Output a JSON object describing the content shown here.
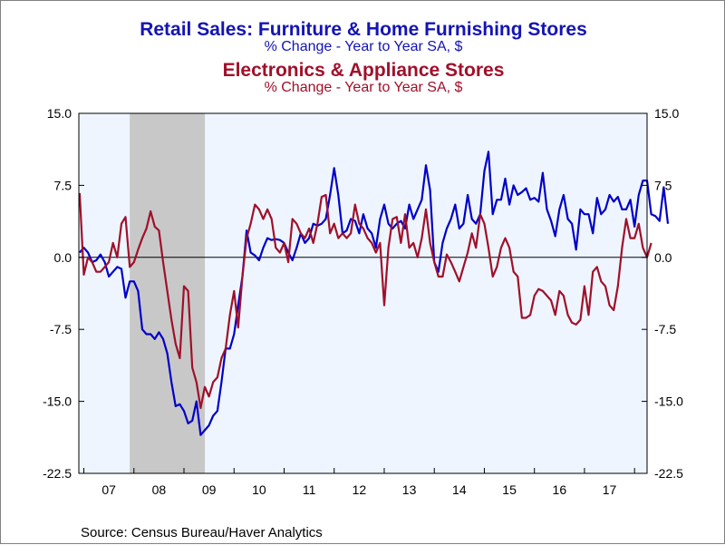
{
  "chart_data": {
    "type": "line",
    "title": {
      "series1_title": "Retail Sales: Furniture & Home Furnishing Stores",
      "series1_subtitle": "% Change - Year to Year    SA, $",
      "series2_title": "Electronics & Appliance Stores",
      "series2_subtitle": "% Change - Year to Year    SA, $"
    },
    "source": "Source:  Census Bureau/Haver Analytics",
    "x_range": [
      2006.9,
      2018.25
    ],
    "ylim": [
      -22.5,
      15.0
    ],
    "yticks": [
      15.0,
      7.5,
      0.0,
      -7.5,
      -15.0,
      -22.5
    ],
    "ytick_labels": [
      "15.0",
      "7.5",
      "0.0",
      "-7.5",
      "-15.0",
      "-22.5"
    ],
    "xtick_labels": [
      {
        "year": 2007,
        "label": "07"
      },
      {
        "year": 2008,
        "label": "08"
      },
      {
        "year": 2009,
        "label": "09"
      },
      {
        "year": 2010,
        "label": "10"
      },
      {
        "year": 2011,
        "label": "11"
      },
      {
        "year": 2012,
        "label": "12"
      },
      {
        "year": 2013,
        "label": "13"
      },
      {
        "year": 2014,
        "label": "14"
      },
      {
        "year": 2015,
        "label": "15"
      },
      {
        "year": 2016,
        "label": "16"
      },
      {
        "year": 2017,
        "label": "17"
      }
    ],
    "recession": [
      2007.917,
      2009.417
    ],
    "zero_line": 0.0,
    "colors": {
      "furniture": "#0000c8",
      "electronics": "#a0102a",
      "plot_bg": "#eef5ff",
      "recession": "#c8c8c8",
      "title_blue": "#1414b4",
      "title_red": "#a0102a"
    },
    "series": [
      {
        "key": "furniture",
        "points": [
          [
            2006.917,
            0.5
          ],
          [
            2007.0,
            1.0
          ],
          [
            2007.083,
            0.5
          ],
          [
            2007.167,
            -0.5
          ],
          [
            2007.25,
            -0.3
          ],
          [
            2007.333,
            0.3
          ],
          [
            2007.417,
            -0.5
          ],
          [
            2007.5,
            -2.0
          ],
          [
            2007.583,
            -1.5
          ],
          [
            2007.667,
            -1.0
          ],
          [
            2007.75,
            -1.2
          ],
          [
            2007.833,
            -4.2
          ],
          [
            2007.917,
            -2.5
          ],
          [
            2008.0,
            -2.5
          ],
          [
            2008.083,
            -3.5
          ],
          [
            2008.167,
            -7.5
          ],
          [
            2008.25,
            -8.0
          ],
          [
            2008.333,
            -8.0
          ],
          [
            2008.417,
            -8.5
          ],
          [
            2008.5,
            -7.8
          ],
          [
            2008.583,
            -8.5
          ],
          [
            2008.667,
            -10.0
          ],
          [
            2008.75,
            -13.0
          ],
          [
            2008.833,
            -15.5
          ],
          [
            2008.917,
            -15.3
          ],
          [
            2009.0,
            -16.0
          ],
          [
            2009.083,
            -17.3
          ],
          [
            2009.167,
            -17.0
          ],
          [
            2009.25,
            -15.0
          ],
          [
            2009.333,
            -18.5
          ],
          [
            2009.417,
            -18.0
          ],
          [
            2009.5,
            -17.5
          ],
          [
            2009.583,
            -16.5
          ],
          [
            2009.667,
            -16.0
          ],
          [
            2009.75,
            -13.0
          ],
          [
            2009.833,
            -9.5
          ],
          [
            2009.917,
            -9.5
          ],
          [
            2010.0,
            -8.0
          ],
          [
            2010.083,
            -5.0
          ],
          [
            2010.167,
            -2.0
          ],
          [
            2010.25,
            2.8
          ],
          [
            2010.333,
            0.5
          ],
          [
            2010.417,
            0.2
          ],
          [
            2010.5,
            -0.3
          ],
          [
            2010.583,
            1.0
          ],
          [
            2010.667,
            2.0
          ],
          [
            2010.75,
            1.8
          ],
          [
            2010.833,
            1.9
          ],
          [
            2010.917,
            1.8
          ],
          [
            2011.0,
            1.5
          ],
          [
            2011.083,
            0.5
          ],
          [
            2011.167,
            -0.3
          ],
          [
            2011.25,
            1.0
          ],
          [
            2011.333,
            2.5
          ],
          [
            2011.417,
            1.5
          ],
          [
            2011.5,
            2.0
          ],
          [
            2011.583,
            3.5
          ],
          [
            2011.667,
            3.3
          ],
          [
            2011.75,
            3.5
          ],
          [
            2011.833,
            4.0
          ],
          [
            2011.917,
            6.5
          ],
          [
            2012.0,
            9.3
          ],
          [
            2012.083,
            6.5
          ],
          [
            2012.167,
            2.5
          ],
          [
            2012.25,
            2.8
          ],
          [
            2012.333,
            4.0
          ],
          [
            2012.417,
            3.8
          ],
          [
            2012.5,
            2.5
          ],
          [
            2012.583,
            4.5
          ],
          [
            2012.667,
            3.0
          ],
          [
            2012.75,
            2.5
          ],
          [
            2012.833,
            1.0
          ],
          [
            2012.917,
            4.0
          ],
          [
            2013.0,
            5.5
          ],
          [
            2013.083,
            3.5
          ],
          [
            2013.167,
            3.0
          ],
          [
            2013.25,
            3.5
          ],
          [
            2013.333,
            3.8
          ],
          [
            2013.417,
            3.0
          ],
          [
            2013.5,
            5.5
          ],
          [
            2013.583,
            4.0
          ],
          [
            2013.667,
            5.0
          ],
          [
            2013.75,
            6.0
          ],
          [
            2013.833,
            9.6
          ],
          [
            2013.917,
            7.0
          ],
          [
            2014.0,
            -0.5
          ],
          [
            2014.083,
            -1.5
          ],
          [
            2014.167,
            1.5
          ],
          [
            2014.25,
            3.0
          ],
          [
            2014.333,
            4.0
          ],
          [
            2014.417,
            5.5
          ],
          [
            2014.5,
            3.0
          ],
          [
            2014.583,
            3.5
          ],
          [
            2014.667,
            6.5
          ],
          [
            2014.75,
            4.0
          ],
          [
            2014.833,
            3.5
          ],
          [
            2014.917,
            4.5
          ],
          [
            2015.0,
            9.0
          ],
          [
            2015.083,
            11.0
          ],
          [
            2015.167,
            4.5
          ],
          [
            2015.25,
            6.0
          ],
          [
            2015.333,
            6.0
          ],
          [
            2015.417,
            8.2
          ],
          [
            2015.5,
            5.5
          ],
          [
            2015.583,
            7.5
          ],
          [
            2015.667,
            6.5
          ],
          [
            2015.75,
            6.8
          ],
          [
            2015.833,
            7.2
          ],
          [
            2015.917,
            6.0
          ],
          [
            2016.0,
            6.2
          ],
          [
            2016.083,
            5.8
          ],
          [
            2016.167,
            8.8
          ],
          [
            2016.25,
            5.0
          ],
          [
            2016.333,
            3.8
          ],
          [
            2016.417,
            2.2
          ],
          [
            2016.5,
            5.0
          ],
          [
            2016.583,
            6.5
          ],
          [
            2016.667,
            4.0
          ],
          [
            2016.75,
            3.5
          ],
          [
            2016.833,
            0.8
          ],
          [
            2016.917,
            5.0
          ],
          [
            2017.0,
            4.5
          ],
          [
            2017.083,
            4.5
          ],
          [
            2017.167,
            2.5
          ],
          [
            2017.25,
            6.2
          ],
          [
            2017.333,
            4.5
          ],
          [
            2017.417,
            5.0
          ],
          [
            2017.5,
            6.5
          ],
          [
            2017.583,
            5.8
          ],
          [
            2017.667,
            6.3
          ],
          [
            2017.75,
            5.0
          ],
          [
            2017.833,
            5.0
          ],
          [
            2017.917,
            6.0
          ],
          [
            2018.0,
            3.2
          ],
          [
            2018.083,
            6.5
          ],
          [
            2018.167,
            8.0
          ],
          [
            2018.25,
            8.0
          ],
          [
            2018.333,
            4.5
          ],
          [
            2018.417,
            4.3
          ],
          [
            2018.5,
            3.8
          ],
          [
            2018.583,
            7.3
          ],
          [
            2018.667,
            3.5
          ]
        ]
      },
      {
        "key": "electronics",
        "points": [
          [
            2006.917,
            6.7
          ],
          [
            2007.0,
            -1.8
          ],
          [
            2007.083,
            0.0
          ],
          [
            2007.167,
            -0.5
          ],
          [
            2007.25,
            -1.5
          ],
          [
            2007.333,
            -1.5
          ],
          [
            2007.417,
            -1.0
          ],
          [
            2007.5,
            -0.5
          ],
          [
            2007.583,
            1.5
          ],
          [
            2007.667,
            0.0
          ],
          [
            2007.75,
            3.5
          ],
          [
            2007.833,
            4.2
          ],
          [
            2007.917,
            -1.0
          ],
          [
            2008.0,
            -0.5
          ],
          [
            2008.083,
            0.8
          ],
          [
            2008.167,
            2.0
          ],
          [
            2008.25,
            3.0
          ],
          [
            2008.333,
            4.8
          ],
          [
            2008.417,
            3.2
          ],
          [
            2008.5,
            2.8
          ],
          [
            2008.583,
            -0.5
          ],
          [
            2008.667,
            -3.5
          ],
          [
            2008.75,
            -6.5
          ],
          [
            2008.833,
            -9.0
          ],
          [
            2008.917,
            -10.5
          ],
          [
            2009.0,
            -3.0
          ],
          [
            2009.083,
            -3.5
          ],
          [
            2009.167,
            -11.5
          ],
          [
            2009.25,
            -13.0
          ],
          [
            2009.333,
            -15.7
          ],
          [
            2009.417,
            -13.5
          ],
          [
            2009.5,
            -14.5
          ],
          [
            2009.583,
            -13.0
          ],
          [
            2009.667,
            -12.5
          ],
          [
            2009.75,
            -10.5
          ],
          [
            2009.833,
            -9.5
          ],
          [
            2009.917,
            -6.0
          ],
          [
            2010.0,
            -3.5
          ],
          [
            2010.083,
            -7.3
          ],
          [
            2010.167,
            -2.0
          ],
          [
            2010.25,
            2.0
          ],
          [
            2010.333,
            3.5
          ],
          [
            2010.417,
            5.5
          ],
          [
            2010.5,
            5.0
          ],
          [
            2010.583,
            4.0
          ],
          [
            2010.667,
            5.0
          ],
          [
            2010.75,
            4.0
          ],
          [
            2010.833,
            1.0
          ],
          [
            2010.917,
            0.5
          ],
          [
            2011.0,
            1.5
          ],
          [
            2011.083,
            -0.5
          ],
          [
            2011.167,
            4.0
          ],
          [
            2011.25,
            3.5
          ],
          [
            2011.333,
            2.5
          ],
          [
            2011.417,
            2.0
          ],
          [
            2011.5,
            3.0
          ],
          [
            2011.583,
            1.5
          ],
          [
            2011.667,
            3.5
          ],
          [
            2011.75,
            6.3
          ],
          [
            2011.833,
            6.5
          ],
          [
            2011.917,
            2.5
          ],
          [
            2012.0,
            3.5
          ],
          [
            2012.083,
            2.0
          ],
          [
            2012.167,
            2.5
          ],
          [
            2012.25,
            2.0
          ],
          [
            2012.333,
            2.5
          ],
          [
            2012.417,
            5.5
          ],
          [
            2012.5,
            3.5
          ],
          [
            2012.583,
            3.0
          ],
          [
            2012.667,
            2.0
          ],
          [
            2012.75,
            1.5
          ],
          [
            2012.833,
            0.5
          ],
          [
            2012.917,
            1.5
          ],
          [
            2013.0,
            -5.0
          ],
          [
            2013.083,
            1.0
          ],
          [
            2013.167,
            4.0
          ],
          [
            2013.25,
            4.2
          ],
          [
            2013.333,
            1.5
          ],
          [
            2013.417,
            4.5
          ],
          [
            2013.5,
            1.0
          ],
          [
            2013.583,
            1.5
          ],
          [
            2013.667,
            0.0
          ],
          [
            2013.75,
            2.0
          ],
          [
            2013.833,
            5.0
          ],
          [
            2013.917,
            1.5
          ],
          [
            2014.0,
            -0.5
          ],
          [
            2014.083,
            -2.0
          ],
          [
            2014.167,
            -2.0
          ],
          [
            2014.25,
            0.3
          ],
          [
            2014.333,
            -0.5
          ],
          [
            2014.417,
            -1.5
          ],
          [
            2014.5,
            -2.5
          ],
          [
            2014.583,
            -1.0
          ],
          [
            2014.667,
            0.5
          ],
          [
            2014.75,
            2.5
          ],
          [
            2014.833,
            1.0
          ],
          [
            2014.917,
            4.5
          ],
          [
            2015.0,
            3.5
          ],
          [
            2015.083,
            1.0
          ],
          [
            2015.167,
            -2.0
          ],
          [
            2015.25,
            -1.0
          ],
          [
            2015.333,
            1.0
          ],
          [
            2015.417,
            2.0
          ],
          [
            2015.5,
            1.0
          ],
          [
            2015.583,
            -1.5
          ],
          [
            2015.667,
            -2.0
          ],
          [
            2015.75,
            -6.3
          ],
          [
            2015.833,
            -6.3
          ],
          [
            2015.917,
            -6.0
          ],
          [
            2016.0,
            -4.0
          ],
          [
            2016.083,
            -3.3
          ],
          [
            2016.167,
            -3.5
          ],
          [
            2016.25,
            -4.0
          ],
          [
            2016.333,
            -4.5
          ],
          [
            2016.417,
            -6.0
          ],
          [
            2016.5,
            -3.5
          ],
          [
            2016.583,
            -4.0
          ],
          [
            2016.667,
            -6.0
          ],
          [
            2016.75,
            -6.8
          ],
          [
            2016.833,
            -7.0
          ],
          [
            2016.917,
            -6.5
          ],
          [
            2017.0,
            -3.0
          ],
          [
            2017.083,
            -6.0
          ],
          [
            2017.167,
            -1.5
          ],
          [
            2017.25,
            -1.0
          ],
          [
            2017.333,
            -2.5
          ],
          [
            2017.417,
            -3.0
          ],
          [
            2017.5,
            -5.0
          ],
          [
            2017.583,
            -5.5
          ],
          [
            2017.667,
            -3.0
          ],
          [
            2017.75,
            1.0
          ],
          [
            2017.833,
            4.0
          ],
          [
            2017.917,
            2.0
          ],
          [
            2018.0,
            2.0
          ],
          [
            2018.083,
            3.5
          ],
          [
            2018.167,
            1.0
          ],
          [
            2018.25,
            0.0
          ],
          [
            2018.333,
            1.5
          ]
        ]
      }
    ]
  }
}
